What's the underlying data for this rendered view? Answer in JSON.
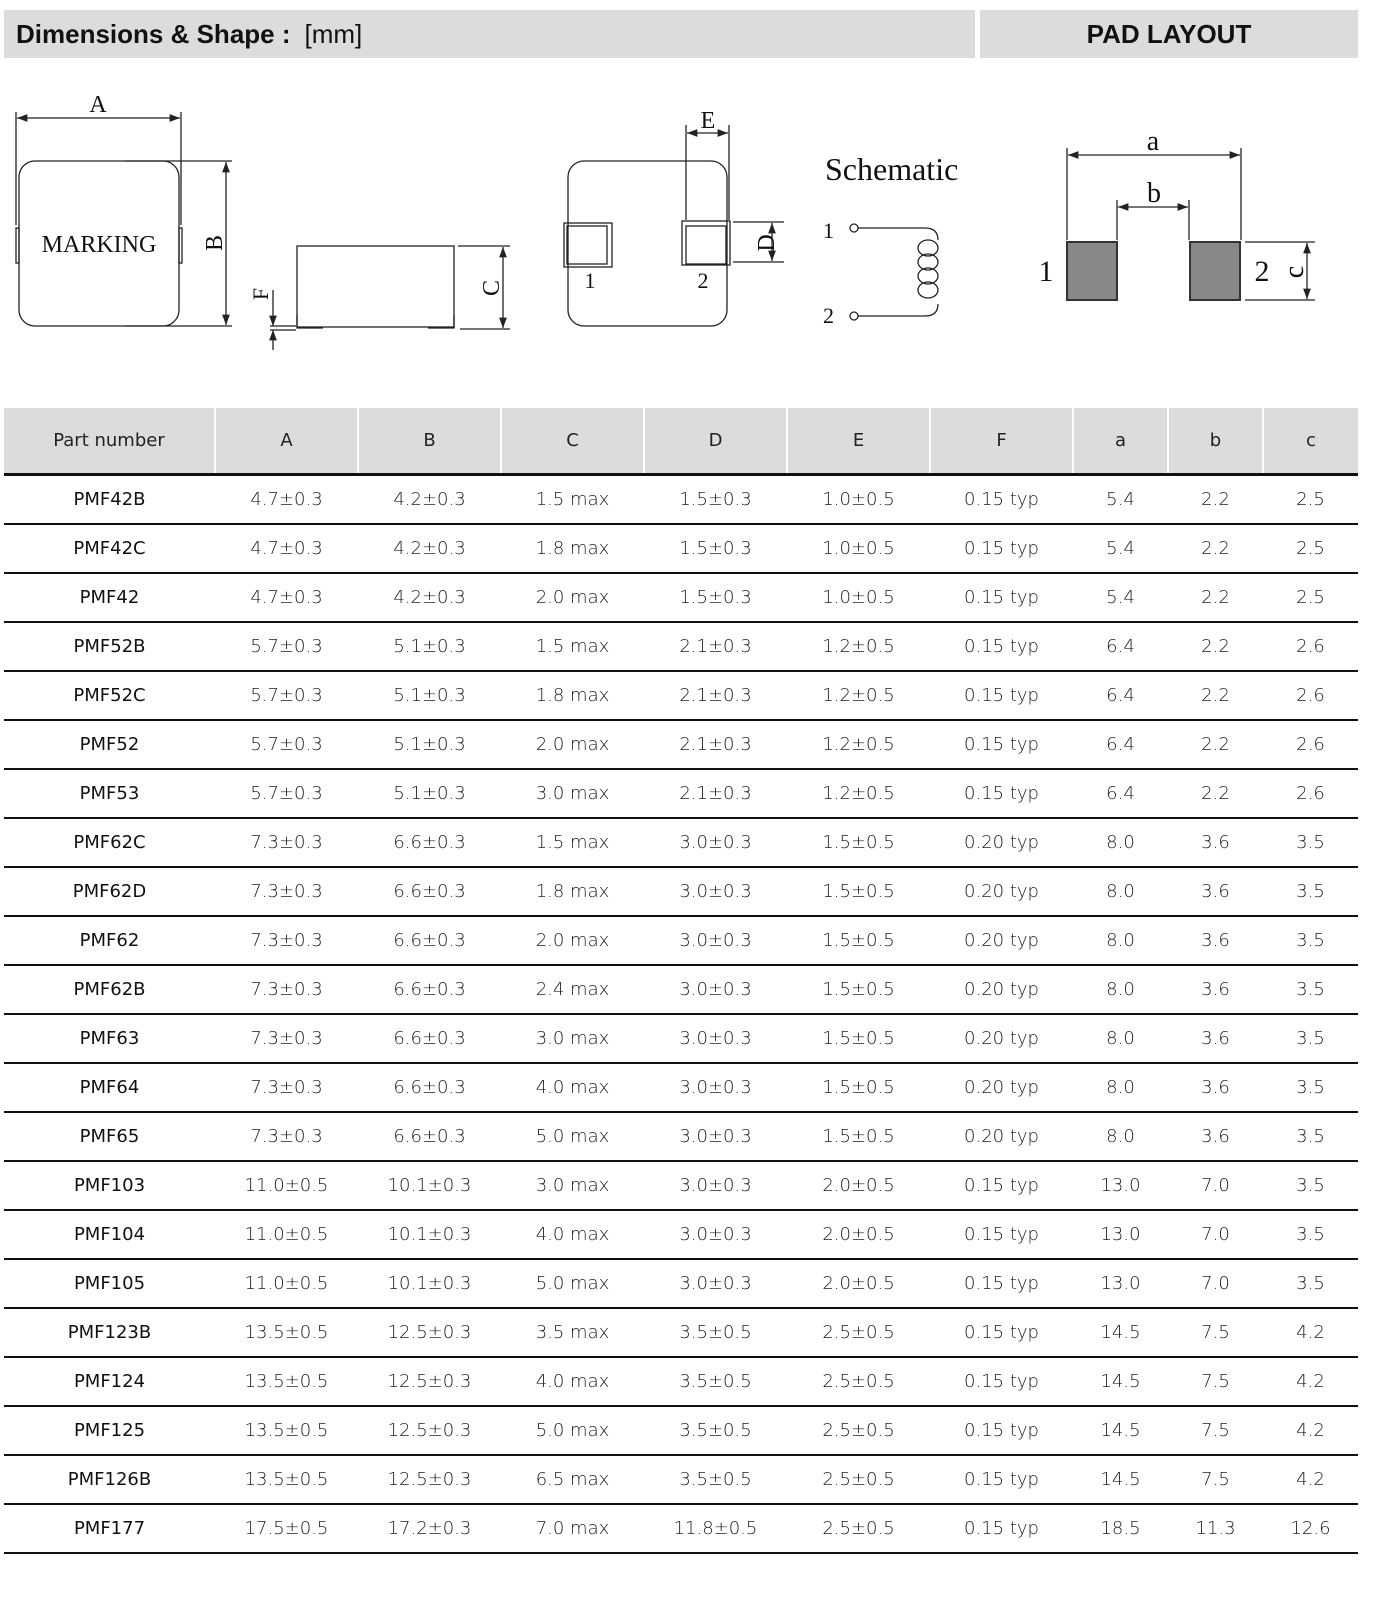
{
  "header": {
    "title": "Dimensions & Shape :",
    "unit": "[mm]",
    "pad_layout": "PAD LAYOUT"
  },
  "drawing": {
    "marking": "MARKING",
    "dims": {
      "A": "A",
      "B": "B",
      "C": "C",
      "D": "D",
      "E": "E",
      "F": "F",
      "a": "a",
      "b": "b",
      "c": "c"
    },
    "terminal_1": "1",
    "terminal_2": "2",
    "schematic": "Schematic",
    "pad_color": "#888888"
  },
  "table": {
    "columns": [
      "Part number",
      "A",
      "B",
      "C",
      "D",
      "E",
      "F",
      "a",
      "b",
      "c"
    ],
    "rows": [
      [
        "PMF42B",
        "4.7±0.3",
        "4.2±0.3",
        "1.5 max",
        "1.5±0.3",
        "1.0±0.5",
        "0.15 typ",
        "5.4",
        "2.2",
        "2.5"
      ],
      [
        "PMF42C",
        "4.7±0.3",
        "4.2±0.3",
        "1.8 max",
        "1.5±0.3",
        "1.0±0.5",
        "0.15 typ",
        "5.4",
        "2.2",
        "2.5"
      ],
      [
        "PMF42",
        "4.7±0.3",
        "4.2±0.3",
        "2.0 max",
        "1.5±0.3",
        "1.0±0.5",
        "0.15 typ",
        "5.4",
        "2.2",
        "2.5"
      ],
      [
        "PMF52B",
        "5.7±0.3",
        "5.1±0.3",
        "1.5 max",
        "2.1±0.3",
        "1.2±0.5",
        "0.15 typ",
        "6.4",
        "2.2",
        "2.6"
      ],
      [
        "PMF52C",
        "5.7±0.3",
        "5.1±0.3",
        "1.8 max",
        "2.1±0.3",
        "1.2±0.5",
        "0.15 typ",
        "6.4",
        "2.2",
        "2.6"
      ],
      [
        "PMF52",
        "5.7±0.3",
        "5.1±0.3",
        "2.0 max",
        "2.1±0.3",
        "1.2±0.5",
        "0.15 typ",
        "6.4",
        "2.2",
        "2.6"
      ],
      [
        "PMF53",
        "5.7±0.3",
        "5.1±0.3",
        "3.0 max",
        "2.1±0.3",
        "1.2±0.5",
        "0.15 typ",
        "6.4",
        "2.2",
        "2.6"
      ],
      [
        "PMF62C",
        "7.3±0.3",
        "6.6±0.3",
        "1.5 max",
        "3.0±0.3",
        "1.5±0.5",
        "0.20 typ",
        "8.0",
        "3.6",
        "3.5"
      ],
      [
        "PMF62D",
        "7.3±0.3",
        "6.6±0.3",
        "1.8 max",
        "3.0±0.3",
        "1.5±0.5",
        "0.20 typ",
        "8.0",
        "3.6",
        "3.5"
      ],
      [
        "PMF62",
        "7.3±0.3",
        "6.6±0.3",
        "2.0 max",
        "3.0±0.3",
        "1.5±0.5",
        "0.20 typ",
        "8.0",
        "3.6",
        "3.5"
      ],
      [
        "PMF62B",
        "7.3±0.3",
        "6.6±0.3",
        "2.4 max",
        "3.0±0.3",
        "1.5±0.5",
        "0.20 typ",
        "8.0",
        "3.6",
        "3.5"
      ],
      [
        "PMF63",
        "7.3±0.3",
        "6.6±0.3",
        "3.0 max",
        "3.0±0.3",
        "1.5±0.5",
        "0.20 typ",
        "8.0",
        "3.6",
        "3.5"
      ],
      [
        "PMF64",
        "7.3±0.3",
        "6.6±0.3",
        "4.0 max",
        "3.0±0.3",
        "1.5±0.5",
        "0.20 typ",
        "8.0",
        "3.6",
        "3.5"
      ],
      [
        "PMF65",
        "7.3±0.3",
        "6.6±0.3",
        "5.0 max",
        "3.0±0.3",
        "1.5±0.5",
        "0.20 typ",
        "8.0",
        "3.6",
        "3.5"
      ],
      [
        "PMF103",
        "11.0±0.5",
        "10.1±0.3",
        "3.0 max",
        "3.0±0.3",
        "2.0±0.5",
        "0.15 typ",
        "13.0",
        "7.0",
        "3.5"
      ],
      [
        "PMF104",
        "11.0±0.5",
        "10.1±0.3",
        "4.0 max",
        "3.0±0.3",
        "2.0±0.5",
        "0.15 typ",
        "13.0",
        "7.0",
        "3.5"
      ],
      [
        "PMF105",
        "11.0±0.5",
        "10.1±0.3",
        "5.0 max",
        "3.0±0.3",
        "2.0±0.5",
        "0.15 typ",
        "13.0",
        "7.0",
        "3.5"
      ],
      [
        "PMF123B",
        "13.5±0.5",
        "12.5±0.3",
        "3.5 max",
        "3.5±0.5",
        "2.5±0.5",
        "0.15 typ",
        "14.5",
        "7.5",
        "4.2"
      ],
      [
        "PMF124",
        "13.5±0.5",
        "12.5±0.3",
        "4.0 max",
        "3.5±0.5",
        "2.5±0.5",
        "0.15 typ",
        "14.5",
        "7.5",
        "4.2"
      ],
      [
        "PMF125",
        "13.5±0.5",
        "12.5±0.3",
        "5.0 max",
        "3.5±0.5",
        "2.5±0.5",
        "0.15 typ",
        "14.5",
        "7.5",
        "4.2"
      ],
      [
        "PMF126B",
        "13.5±0.5",
        "12.5±0.3",
        "6.5 max",
        "3.5±0.5",
        "2.5±0.5",
        "0.15 typ",
        "14.5",
        "7.5",
        "4.2"
      ],
      [
        "PMF177",
        "17.5±0.5",
        "17.2±0.3",
        "7.0 max",
        "11.8±0.5",
        "2.5±0.5",
        "0.15 typ",
        "18.5",
        "11.3",
        "12.6"
      ]
    ]
  }
}
